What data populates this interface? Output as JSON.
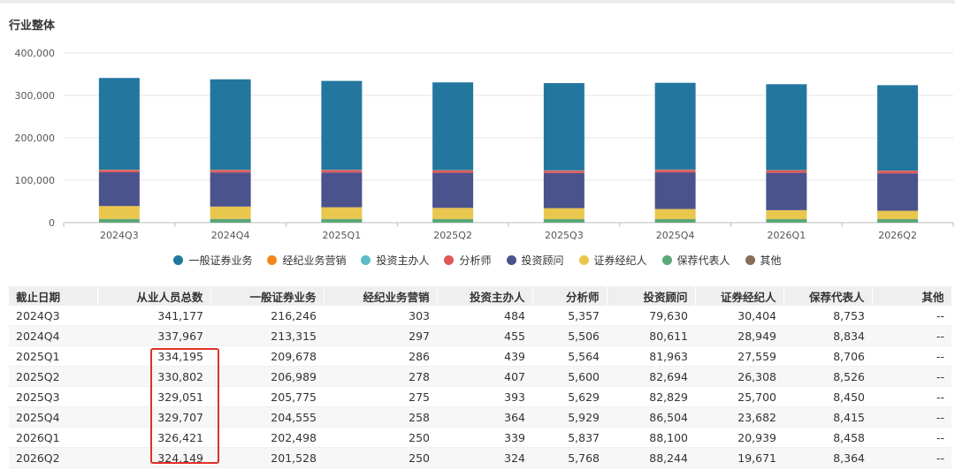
{
  "section_title": "行业整体",
  "legend": [
    {
      "label": "一般证券业务",
      "color": "#23779f"
    },
    {
      "label": "经纪业务营销",
      "color": "#f1871c"
    },
    {
      "label": "投资主办人",
      "color": "#5cbcc6"
    },
    {
      "label": "分析师",
      "color": "#e0585a"
    },
    {
      "label": "投资顾问",
      "color": "#4b538d"
    },
    {
      "label": "证券经纪人",
      "color": "#e9c64e"
    },
    {
      "label": "保荐代表人",
      "color": "#5ba777"
    },
    {
      "label": "其他",
      "color": "#8a6c58"
    }
  ],
  "chart_data": {
    "type": "bar",
    "stacked": true,
    "categories": [
      "2024Q3",
      "2024Q4",
      "2025Q1",
      "2025Q2",
      "2025Q3",
      "2025Q4",
      "2026Q1",
      "2026Q2"
    ],
    "ylim": [
      0,
      400000
    ],
    "yticks": [
      0,
      100000,
      200000,
      300000,
      400000
    ],
    "ytick_labels": [
      "0",
      "100,000",
      "200,000",
      "300,000",
      "400,000"
    ],
    "stack_order": [
      "保荐代表人",
      "证券经纪人",
      "投资顾问",
      "分析师",
      "投资主办人",
      "经纪业务营销",
      "一般证券业务"
    ],
    "series": [
      {
        "name": "一般证券业务",
        "color": "#23779f",
        "values": [
          216246,
          213315,
          209678,
          206989,
          205775,
          204555,
          202498,
          201528
        ]
      },
      {
        "name": "经纪业务营销",
        "color": "#f1871c",
        "values": [
          303,
          297,
          286,
          278,
          275,
          258,
          250,
          250
        ]
      },
      {
        "name": "投资主办人",
        "color": "#5cbcc6",
        "values": [
          484,
          455,
          439,
          407,
          393,
          364,
          339,
          324
        ]
      },
      {
        "name": "分析师",
        "color": "#e0585a",
        "values": [
          5357,
          5506,
          5564,
          5600,
          5629,
          5929,
          5837,
          5768
        ]
      },
      {
        "name": "投资顾问",
        "color": "#4b538d",
        "values": [
          79630,
          80611,
          81963,
          82694,
          82829,
          86504,
          88100,
          88244
        ]
      },
      {
        "name": "证券经纪人",
        "color": "#e9c64e",
        "values": [
          30404,
          28949,
          27559,
          26308,
          25700,
          23682,
          20939,
          19671
        ]
      },
      {
        "name": "保荐代表人",
        "color": "#5ba777",
        "values": [
          8753,
          8834,
          8706,
          8526,
          8450,
          8415,
          8458,
          8364
        ]
      }
    ],
    "grid": "horizontal"
  },
  "table": {
    "headers": [
      "截止日期",
      "从业人员总数",
      "一般证券业务",
      "经纪业务营销",
      "投资主办人",
      "分析师",
      "投资顾问",
      "证券经纪人",
      "保荐代表人",
      "其他"
    ],
    "rows": [
      [
        "2024Q3",
        "341,177",
        "216,246",
        "303",
        "484",
        "5,357",
        "79,630",
        "30,404",
        "8,753",
        "--"
      ],
      [
        "2024Q4",
        "337,967",
        "213,315",
        "297",
        "455",
        "5,506",
        "80,611",
        "28,949",
        "8,834",
        "--"
      ],
      [
        "2025Q1",
        "334,195",
        "209,678",
        "286",
        "439",
        "5,564",
        "81,963",
        "27,559",
        "8,706",
        "--"
      ],
      [
        "2025Q2",
        "330,802",
        "206,989",
        "278",
        "407",
        "5,600",
        "82,694",
        "26,308",
        "8,526",
        "--"
      ],
      [
        "2025Q3",
        "329,051",
        "205,775",
        "275",
        "393",
        "5,629",
        "82,829",
        "25,700",
        "8,450",
        "--"
      ],
      [
        "2025Q4",
        "329,707",
        "204,555",
        "258",
        "364",
        "5,929",
        "86,504",
        "23,682",
        "8,415",
        "--"
      ],
      [
        "2026Q1",
        "326,421",
        "202,498",
        "250",
        "339",
        "5,837",
        "88,100",
        "20,939",
        "8,458",
        "--"
      ],
      [
        "2026Q2",
        "324,149",
        "201,528",
        "250",
        "324",
        "5,768",
        "88,244",
        "19,671",
        "8,364",
        "--"
      ]
    ]
  }
}
